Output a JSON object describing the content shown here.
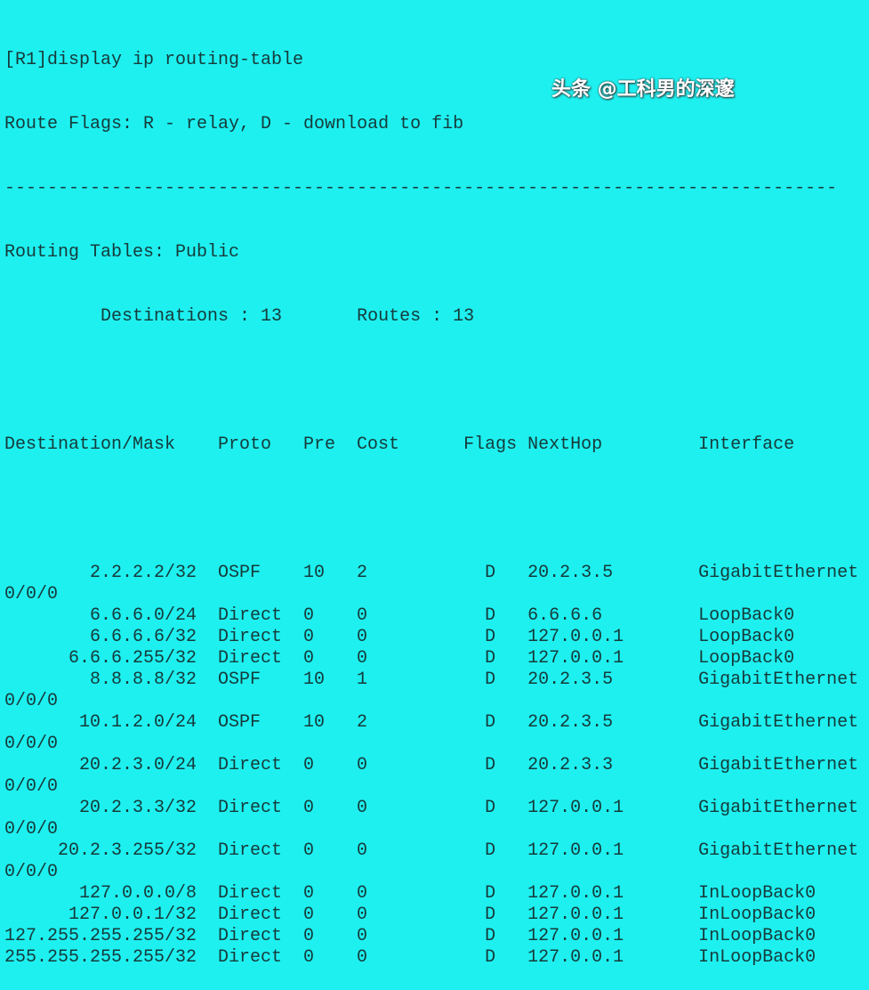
{
  "terminal": {
    "command": "[R1]display ip routing-table",
    "flags_legend": "Route Flags: R - relay, D - download to fib",
    "separator": "------------------------------------------------------------------------------",
    "table_title": "Routing Tables: Public",
    "destinations_label": "Destinations : 13",
    "routes_label": "Routes : 13",
    "columns": [
      "Destination/Mask",
      "Proto",
      "Pre",
      "Cost",
      "Flags",
      "NextHop",
      "Interface"
    ],
    "routes": [
      {
        "dest": "2.2.2.2/32",
        "proto": "OSPF",
        "pre": "10",
        "cost": "2",
        "flags": "D",
        "nexthop": "20.2.3.5",
        "iface": "GigabitEthernet",
        "iface_wrap": "0/0/0"
      },
      {
        "dest": "6.6.6.0/24",
        "proto": "Direct",
        "pre": "0",
        "cost": "0",
        "flags": "D",
        "nexthop": "6.6.6.6",
        "iface": "LoopBack0"
      },
      {
        "dest": "6.6.6.6/32",
        "proto": "Direct",
        "pre": "0",
        "cost": "0",
        "flags": "D",
        "nexthop": "127.0.0.1",
        "iface": "LoopBack0"
      },
      {
        "dest": "6.6.6.255/32",
        "proto": "Direct",
        "pre": "0",
        "cost": "0",
        "flags": "D",
        "nexthop": "127.0.0.1",
        "iface": "LoopBack0"
      },
      {
        "dest": "8.8.8.8/32",
        "proto": "OSPF",
        "pre": "10",
        "cost": "1",
        "flags": "D",
        "nexthop": "20.2.3.5",
        "iface": "GigabitEthernet",
        "iface_wrap": "0/0/0"
      },
      {
        "dest": "10.1.2.0/24",
        "proto": "OSPF",
        "pre": "10",
        "cost": "2",
        "flags": "D",
        "nexthop": "20.2.3.5",
        "iface": "GigabitEthernet",
        "iface_wrap": "0/0/0"
      },
      {
        "dest": "20.2.3.0/24",
        "proto": "Direct",
        "pre": "0",
        "cost": "0",
        "flags": "D",
        "nexthop": "20.2.3.3",
        "iface": "GigabitEthernet",
        "iface_wrap": "0/0/0"
      },
      {
        "dest": "20.2.3.3/32",
        "proto": "Direct",
        "pre": "0",
        "cost": "0",
        "flags": "D",
        "nexthop": "127.0.0.1",
        "iface": "GigabitEthernet",
        "iface_wrap": "0/0/0"
      },
      {
        "dest": "20.2.3.255/32",
        "proto": "Direct",
        "pre": "0",
        "cost": "0",
        "flags": "D",
        "nexthop": "127.0.0.1",
        "iface": "GigabitEthernet",
        "iface_wrap": "0/0/0"
      },
      {
        "dest": "127.0.0.0/8",
        "proto": "Direct",
        "pre": "0",
        "cost": "0",
        "flags": "D",
        "nexthop": "127.0.0.1",
        "iface": "InLoopBack0"
      },
      {
        "dest": "127.0.0.1/32",
        "proto": "Direct",
        "pre": "0",
        "cost": "0",
        "flags": "D",
        "nexthop": "127.0.0.1",
        "iface": "InLoopBack0"
      },
      {
        "dest": "127.255.255.255/32",
        "proto": "Direct",
        "pre": "0",
        "cost": "0",
        "flags": "D",
        "nexthop": "127.0.0.1",
        "iface": "InLoopBack0"
      },
      {
        "dest": "255.255.255.255/32",
        "proto": "Direct",
        "pre": "0",
        "cost": "0",
        "flags": "D",
        "nexthop": "127.0.0.1",
        "iface": "InLoopBack0"
      }
    ]
  },
  "watermark": "头条 @工科男的深邃",
  "colors": {
    "background": "#1ef0f0",
    "text": "#163a3a"
  }
}
